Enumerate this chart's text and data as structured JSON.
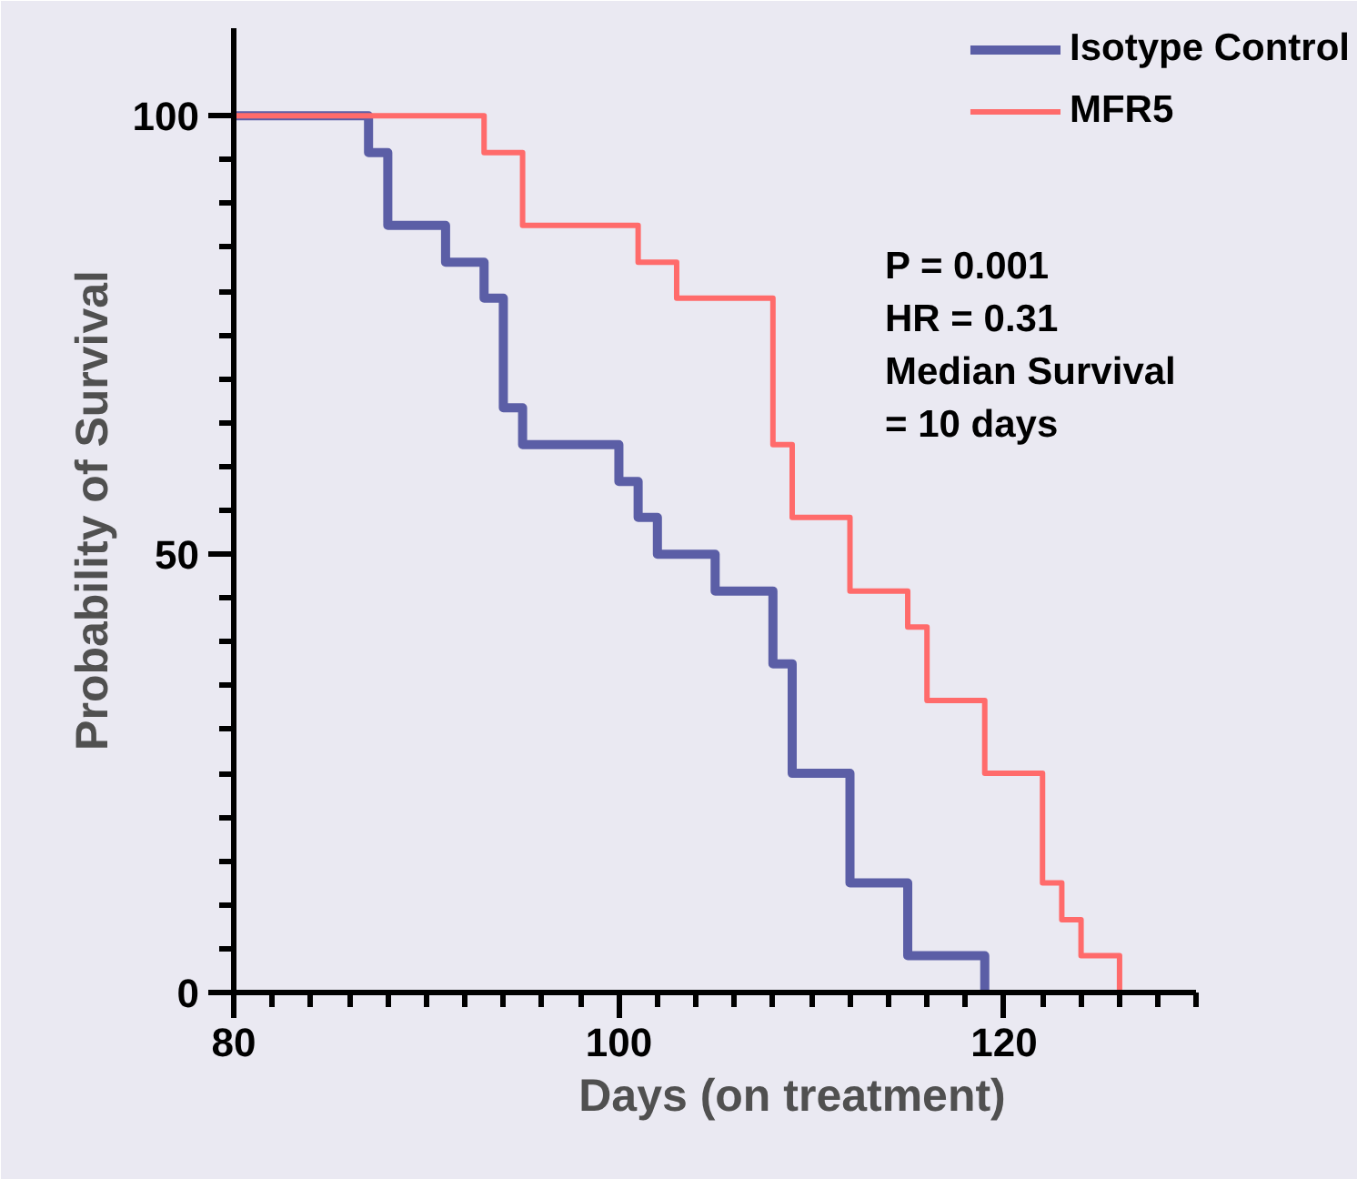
{
  "chart_data": {
    "type": "step",
    "xlabel": "Days (on treatment)",
    "ylabel": "Probability of Survival",
    "xlim": [
      80,
      130
    ],
    "ylim": [
      0,
      110
    ],
    "xticks": [
      80,
      {
        "value": 82,
        "label": null
      },
      {
        "value": 84,
        "label": null
      },
      {
        "value": 86,
        "label": null
      },
      {
        "value": 88,
        "label": null
      },
      {
        "value": 90,
        "label": null
      },
      {
        "value": 92,
        "label": null
      },
      {
        "value": 94,
        "label": null
      },
      {
        "value": 96,
        "label": null
      },
      {
        "value": 98,
        "label": null
      },
      100,
      {
        "value": 102,
        "label": null
      },
      {
        "value": 104,
        "label": null
      },
      {
        "value": 106,
        "label": null
      },
      {
        "value": 108,
        "label": null
      },
      {
        "value": 110,
        "label": null
      },
      {
        "value": 112,
        "label": null
      },
      {
        "value": 114,
        "label": null
      },
      {
        "value": 116,
        "label": null
      },
      {
        "value": 118,
        "label": null
      },
      120,
      {
        "value": 122,
        "label": null
      },
      {
        "value": 124,
        "label": null
      },
      {
        "value": 126,
        "label": null
      },
      {
        "value": 128,
        "label": null
      },
      {
        "value": 130,
        "label": null
      }
    ],
    "yticks": [
      0,
      {
        "value": 5,
        "label": null
      },
      {
        "value": 10,
        "label": null
      },
      {
        "value": 15,
        "label": null
      },
      {
        "value": 20,
        "label": null
      },
      {
        "value": 25,
        "label": null
      },
      {
        "value": 30,
        "label": null
      },
      {
        "value": 35,
        "label": null
      },
      {
        "value": 40,
        "label": null
      },
      {
        "value": 45,
        "label": null
      },
      50,
      {
        "value": 55,
        "label": null
      },
      {
        "value": 60,
        "label": null
      },
      {
        "value": 65,
        "label": null
      },
      {
        "value": 70,
        "label": null
      },
      {
        "value": 75,
        "label": null
      },
      {
        "value": 80,
        "label": null
      },
      {
        "value": 85,
        "label": null
      },
      {
        "value": 90,
        "label": null
      },
      {
        "value": 95,
        "label": null
      },
      100
    ],
    "grid": false,
    "legend": "top right",
    "line_style": "solid",
    "annotations": [
      "P = 0.001",
      "HR = 0.31",
      "Median Survival",
      "= 10 days"
    ],
    "series": [
      {
        "name": "Isotype Control",
        "color": "#5b5ea6",
        "x": [
          80,
          87,
          88,
          91,
          93,
          94,
          95,
          100,
          101,
          102,
          105,
          108,
          109,
          112,
          115,
          119
        ],
        "values": [
          100,
          95.8,
          87.5,
          83.3,
          79.2,
          66.7,
          62.5,
          58.3,
          54.2,
          50,
          45.8,
          37.5,
          25,
          12.5,
          4.2,
          0
        ]
      },
      {
        "name": "MFR5",
        "color": "#ff6b6b",
        "x": [
          80,
          93,
          95,
          101,
          103,
          108,
          109,
          112,
          115,
          116,
          119,
          122,
          123,
          124,
          126
        ],
        "values": [
          100,
          95.8,
          87.5,
          83.3,
          79.2,
          62.5,
          54.2,
          45.8,
          41.7,
          33.3,
          25,
          12.5,
          8.3,
          4.2,
          0
        ]
      }
    ]
  }
}
